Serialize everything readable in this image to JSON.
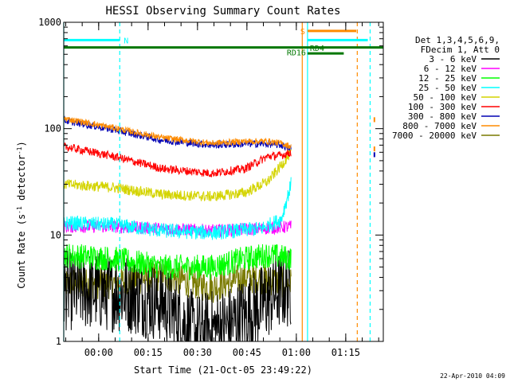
{
  "chart_data": {
    "type": "line",
    "title": "HESSI Observing Summary Count Rates",
    "xlabel": "Start Time (21-Oct-05 23:49:22)",
    "ylabel_main": "Count Rate (s",
    "ylabel_sup1": "-1",
    "ylabel_mid": " detector",
    "ylabel_sup2": "-1",
    "ylabel_end": ")",
    "yscale": "log",
    "ylim": [
      1,
      1000
    ],
    "xlim_minutes_after_start": [
      0,
      97
    ],
    "y_ticks": [
      {
        "value": 1,
        "label": "1"
      },
      {
        "value": 10,
        "label": "10"
      },
      {
        "value": 100,
        "label": "100"
      },
      {
        "value": 1000,
        "label": "1000"
      }
    ],
    "x_ticks": [
      {
        "t": 10.6,
        "label": "00:00"
      },
      {
        "t": 25.6,
        "label": "00:15"
      },
      {
        "t": 40.6,
        "label": "00:30"
      },
      {
        "t": 55.6,
        "label": "00:45"
      },
      {
        "t": 70.6,
        "label": "01:00"
      },
      {
        "t": 85.6,
        "label": "01:15"
      }
    ],
    "legend": {
      "header1": "Det 1,3,4,5,6,9,",
      "header2": "FDecim 1, Att 0",
      "placement": "right"
    },
    "series": [
      {
        "name": "3 - 6 keV",
        "color": "#000000",
        "trend": [
          [
            0,
            3
          ],
          [
            10,
            3
          ],
          [
            20,
            2.8
          ],
          [
            30,
            2.3
          ],
          [
            40,
            1.2
          ],
          [
            50,
            1.4
          ],
          [
            60,
            2.2
          ],
          [
            65,
            3
          ],
          [
            69,
            3.2
          ]
        ],
        "noise": 0.38
      },
      {
        "name": "6 - 12 keV",
        "color": "#ff00ff",
        "trend": [
          [
            0,
            12
          ],
          [
            15,
            12
          ],
          [
            30,
            11.5
          ],
          [
            45,
            11
          ],
          [
            60,
            11.5
          ],
          [
            69,
            12
          ]
        ],
        "noise": 0.06
      },
      {
        "name": "12 - 25 keV",
        "color": "#00ff00",
        "trend": [
          [
            0,
            6.5
          ],
          [
            15,
            6
          ],
          [
            30,
            5
          ],
          [
            45,
            5
          ],
          [
            55,
            6
          ],
          [
            62,
            6.5
          ],
          [
            69,
            6
          ]
        ],
        "noise": 0.12
      },
      {
        "name": "25 - 50 keV",
        "color": "#00ffff",
        "trend": [
          [
            0,
            13
          ],
          [
            15,
            12.5
          ],
          [
            30,
            11
          ],
          [
            45,
            10.5
          ],
          [
            60,
            11.5
          ],
          [
            66,
            14
          ],
          [
            69,
            30
          ]
        ],
        "noise": 0.07
      },
      {
        "name": "50 - 100 keV",
        "color": "#d4d400",
        "trend": [
          [
            0,
            30
          ],
          [
            15,
            28
          ],
          [
            30,
            24
          ],
          [
            45,
            23
          ],
          [
            55,
            25
          ],
          [
            62,
            32
          ],
          [
            66,
            45
          ],
          [
            69,
            60
          ]
        ],
        "noise": 0.05
      },
      {
        "name": "100 - 300 keV",
        "color": "#ff0000",
        "trend": [
          [
            0,
            68
          ],
          [
            15,
            55
          ],
          [
            30,
            42
          ],
          [
            45,
            38
          ],
          [
            55,
            42
          ],
          [
            62,
            55
          ],
          [
            66,
            56
          ],
          [
            69,
            60
          ]
        ],
        "noise": 0.04
      },
      {
        "name": "300 - 800 keV",
        "color": "#0000b4",
        "trend": [
          [
            0,
            120
          ],
          [
            15,
            98
          ],
          [
            30,
            78
          ],
          [
            45,
            70
          ],
          [
            55,
            72
          ],
          [
            62,
            72
          ],
          [
            66,
            70
          ],
          [
            69,
            65
          ]
        ],
        "noise": 0.035
      },
      {
        "name": "800 - 7000 keV",
        "color": "#ff8c00",
        "trend": [
          [
            0,
            125
          ],
          [
            15,
            102
          ],
          [
            30,
            82
          ],
          [
            45,
            73
          ],
          [
            55,
            76
          ],
          [
            62,
            76
          ],
          [
            66,
            73
          ],
          [
            69,
            68
          ]
        ],
        "noise": 0.03
      },
      {
        "name": "7000 - 20000 keV",
        "color": "#7a7a00",
        "trend": [
          [
            0,
            3.5
          ],
          [
            15,
            3.5
          ],
          [
            30,
            4.2
          ],
          [
            45,
            3.2
          ],
          [
            55,
            4
          ],
          [
            62,
            3.8
          ],
          [
            69,
            3.5
          ]
        ],
        "noise": 0.15
      }
    ],
    "annotations": {
      "N": {
        "label": "N",
        "color": "#00ffff",
        "x_start": 0,
        "x_end": 17,
        "y": 680,
        "dash_x": 17
      },
      "S": {
        "label": "S",
        "color": "#ff8c00",
        "x_start": 74,
        "x_end": 88.8,
        "y": 830
      },
      "RD4": {
        "label": "RD4",
        "color": "#007700",
        "x_start": 74,
        "x_end": 85,
        "y": 510
      },
      "RD16": {
        "label": "RD16",
        "color": "#007700",
        "x_start": 0,
        "x_end": 97,
        "y": 580
      },
      "cyan_bar_right": {
        "color": "#00ffff",
        "x_start": 74,
        "x_end": 92.3,
        "y": 680
      },
      "vlines": [
        {
          "t": 0,
          "color": "#00ffff",
          "style": "solid"
        },
        {
          "t": 17,
          "color": "#00ffff",
          "style": "dashed"
        },
        {
          "t": 72.4,
          "color": "#ff8c00",
          "style": "solid"
        },
        {
          "t": 74,
          "color": "#00ffff",
          "style": "solid"
        },
        {
          "t": 89.1,
          "color": "#ff8c00",
          "style": "dashed"
        },
        {
          "t": 93,
          "color": "#00ffff",
          "style": "dashed"
        }
      ]
    },
    "footer_timestamp": "22-Apr-2010 04:09"
  }
}
